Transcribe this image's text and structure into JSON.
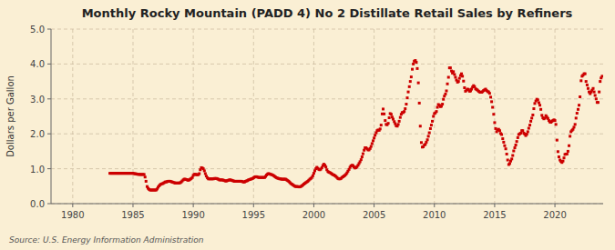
{
  "chart_data": {
    "type": "scatter",
    "title": "Monthly Rocky Mountain (PADD 4) No 2 Distillate Retail Sales by Refiners",
    "ylabel": "Dollars per Gallon",
    "source": "Source: U.S. Energy Information Administration",
    "color": "#cc0000",
    "marker": "square",
    "grid": true,
    "xlim": [
      1978.2,
      2024.0
    ],
    "xticks": [
      1980,
      1985,
      1990,
      1995,
      2000,
      2005,
      2010,
      2015,
      2020
    ],
    "ylim": [
      0.0,
      5.0
    ],
    "yticks": [
      {
        "value": 0.0,
        "label": "0.0"
      },
      {
        "value": 1.0,
        "label": "1.0"
      },
      {
        "value": 2.0,
        "label": "2.0"
      },
      {
        "value": 3.0,
        "label": "3.0"
      },
      {
        "value": 4.0,
        "label": "4.0"
      },
      {
        "value": 5.0,
        "label": "5.0"
      }
    ],
    "x": [
      1983.08,
      1983.17,
      1983.25,
      1983.33,
      1983.42,
      1983.5,
      1983.58,
      1983.67,
      1983.75,
      1983.83,
      1983.92,
      1984.0,
      1984.08,
      1984.17,
      1984.25,
      1984.33,
      1984.42,
      1984.5,
      1984.58,
      1984.67,
      1984.75,
      1984.83,
      1984.92,
      1985.0,
      1985.08,
      1985.17,
      1985.25,
      1985.33,
      1985.42,
      1985.5,
      1985.58,
      1985.67,
      1985.75,
      1985.83,
      1985.92,
      1986.0,
      1986.08,
      1986.17,
      1986.25,
      1986.33,
      1986.42,
      1986.5,
      1986.58,
      1986.67,
      1986.75,
      1986.83,
      1986.92,
      1987.0,
      1987.08,
      1987.17,
      1987.25,
      1987.33,
      1987.42,
      1987.5,
      1987.58,
      1987.67,
      1987.75,
      1987.83,
      1987.92,
      1988.0,
      1988.08,
      1988.17,
      1988.25,
      1988.33,
      1988.42,
      1988.5,
      1988.58,
      1988.67,
      1988.75,
      1988.83,
      1988.92,
      1989.0,
      1989.08,
      1989.17,
      1989.25,
      1989.33,
      1989.42,
      1989.5,
      1989.58,
      1989.67,
      1989.75,
      1989.83,
      1989.92,
      1990.0,
      1990.08,
      1990.17,
      1990.25,
      1990.33,
      1990.42,
      1990.5,
      1990.58,
      1990.67,
      1990.75,
      1990.83,
      1990.92,
      1991.0,
      1991.08,
      1991.17,
      1991.25,
      1991.33,
      1991.42,
      1991.5,
      1991.58,
      1991.67,
      1991.75,
      1991.83,
      1991.92,
      1992.0,
      1992.08,
      1992.17,
      1992.25,
      1992.33,
      1992.42,
      1992.5,
      1992.58,
      1992.67,
      1992.75,
      1992.83,
      1992.92,
      1993.0,
      1993.08,
      1993.17,
      1993.25,
      1993.33,
      1993.42,
      1993.5,
      1993.58,
      1993.67,
      1993.75,
      1993.83,
      1993.92,
      1994.0,
      1994.08,
      1994.17,
      1994.25,
      1994.33,
      1994.42,
      1994.5,
      1994.58,
      1994.67,
      1994.75,
      1994.83,
      1994.92,
      1995.0,
      1995.08,
      1995.17,
      1995.25,
      1995.33,
      1995.42,
      1995.5,
      1995.58,
      1995.67,
      1995.75,
      1995.83,
      1995.92,
      1996.0,
      1996.08,
      1996.17,
      1996.25,
      1996.33,
      1996.42,
      1996.5,
      1996.58,
      1996.67,
      1996.75,
      1996.83,
      1996.92,
      1997.0,
      1997.08,
      1997.17,
      1997.25,
      1997.33,
      1997.42,
      1997.5,
      1997.58,
      1997.67,
      1997.75,
      1997.83,
      1997.92,
      1998.0,
      1998.08,
      1998.17,
      1998.25,
      1998.33,
      1998.42,
      1998.5,
      1998.58,
      1998.67,
      1998.75,
      1998.83,
      1998.92,
      1999.0,
      1999.08,
      1999.17,
      1999.25,
      1999.33,
      1999.42,
      1999.5,
      1999.58,
      1999.67,
      1999.75,
      1999.83,
      1999.92,
      2000.0,
      2000.08,
      2000.17,
      2000.25,
      2000.33,
      2000.42,
      2000.5,
      2000.58,
      2000.67,
      2000.75,
      2000.83,
      2000.92,
      2001.0,
      2001.08,
      2001.17,
      2001.25,
      2001.33,
      2001.42,
      2001.5,
      2001.58,
      2001.67,
      2001.75,
      2001.83,
      2001.92,
      2002.0,
      2002.08,
      2002.17,
      2002.25,
      2002.33,
      2002.42,
      2002.5,
      2002.58,
      2002.67,
      2002.75,
      2002.83,
      2002.92,
      2003.0,
      2003.08,
      2003.17,
      2003.25,
      2003.33,
      2003.42,
      2003.5,
      2003.58,
      2003.67,
      2003.75,
      2003.83,
      2003.92,
      2004.0,
      2004.08,
      2004.17,
      2004.25,
      2004.33,
      2004.42,
      2004.5,
      2004.58,
      2004.67,
      2004.75,
      2004.83,
      2004.92,
      2005.0,
      2005.08,
      2005.17,
      2005.25,
      2005.33,
      2005.42,
      2005.5,
      2005.58,
      2005.67,
      2005.75,
      2005.83,
      2005.92,
      2006.0,
      2006.08,
      2006.17,
      2006.25,
      2006.33,
      2006.42,
      2006.5,
      2006.58,
      2006.67,
      2006.75,
      2006.83,
      2006.92,
      2007.0,
      2007.08,
      2007.17,
      2007.25,
      2007.33,
      2007.42,
      2007.5,
      2007.58,
      2007.67,
      2007.75,
      2007.83,
      2007.92,
      2008.0,
      2008.08,
      2008.17,
      2008.25,
      2008.33,
      2008.42,
      2008.5,
      2008.58,
      2008.67,
      2008.75,
      2008.83,
      2008.92,
      2009.0,
      2009.08,
      2009.17,
      2009.25,
      2009.33,
      2009.42,
      2009.5,
      2009.58,
      2009.67,
      2009.75,
      2009.83,
      2009.92,
      2010.0,
      2010.08,
      2010.17,
      2010.25,
      2010.33,
      2010.42,
      2010.5,
      2010.58,
      2010.67,
      2010.75,
      2010.83,
      2010.92,
      2011.0,
      2011.08,
      2011.17,
      2011.25,
      2011.33,
      2011.42,
      2011.5,
      2011.58,
      2011.67,
      2011.75,
      2011.83,
      2011.92,
      2012.0,
      2012.08,
      2012.17,
      2012.25,
      2012.33,
      2012.42,
      2012.5,
      2012.58,
      2012.67,
      2012.75,
      2012.83,
      2012.92,
      2013.0,
      2013.08,
      2013.17,
      2013.25,
      2013.33,
      2013.42,
      2013.5,
      2013.58,
      2013.67,
      2013.75,
      2013.83,
      2013.92,
      2014.0,
      2014.08,
      2014.17,
      2014.25,
      2014.33,
      2014.42,
      2014.5,
      2014.58,
      2014.67,
      2014.75,
      2014.83,
      2014.92,
      2015.0,
      2015.08,
      2015.17,
      2015.25,
      2015.33,
      2015.42,
      2015.5,
      2015.58,
      2015.67,
      2015.75,
      2015.83,
      2015.92,
      2016.0,
      2016.08,
      2016.17,
      2016.25,
      2016.33,
      2016.42,
      2016.5,
      2016.58,
      2016.67,
      2016.75,
      2016.83,
      2016.92,
      2017.0,
      2017.08,
      2017.17,
      2017.25,
      2017.33,
      2017.42,
      2017.5,
      2017.58,
      2017.67,
      2017.75,
      2017.83,
      2017.92,
      2018.0,
      2018.08,
      2018.17,
      2018.25,
      2018.33,
      2018.42,
      2018.5,
      2018.58,
      2018.67,
      2018.75,
      2018.83,
      2018.92,
      2019.0,
      2019.08,
      2019.17,
      2019.25,
      2019.33,
      2019.42,
      2019.5,
      2019.58,
      2019.67,
      2019.75,
      2019.83,
      2019.92,
      2020.0,
      2020.08,
      2020.17,
      2020.25,
      2020.33,
      2020.42,
      2020.5,
      2020.58,
      2020.67,
      2020.75,
      2020.83,
      2020.92,
      2021.0,
      2021.08,
      2021.17,
      2021.25,
      2021.33,
      2021.42,
      2021.5,
      2021.58,
      2021.67,
      2021.75,
      2021.83,
      2021.92,
      2022.0,
      2022.08,
      2022.17,
      2022.25,
      2022.33,
      2022.42,
      2022.5,
      2022.58,
      2022.67,
      2022.75,
      2022.83,
      2022.92,
      2023.0,
      2023.08,
      2023.17,
      2023.25,
      2023.33,
      2023.42,
      2023.5,
      2023.58,
      2023.67,
      2023.75,
      2023.83,
      2023.92
    ],
    "values": [
      0.869,
      0.869,
      0.869,
      0.869,
      0.869,
      0.869,
      0.869,
      0.869,
      0.869,
      0.869,
      0.869,
      0.869,
      0.869,
      0.869,
      0.869,
      0.869,
      0.869,
      0.869,
      0.869,
      0.869,
      0.869,
      0.869,
      0.869,
      0.869,
      0.862,
      0.855,
      0.855,
      0.844,
      0.84,
      0.84,
      0.836,
      0.836,
      0.836,
      0.836,
      0.836,
      0.762,
      0.64,
      0.49,
      0.44,
      0.41,
      0.39,
      0.39,
      0.39,
      0.39,
      0.39,
      0.39,
      0.39,
      0.42,
      0.47,
      0.51,
      0.54,
      0.56,
      0.57,
      0.58,
      0.6,
      0.62,
      0.62,
      0.63,
      0.64,
      0.64,
      0.64,
      0.63,
      0.62,
      0.61,
      0.6,
      0.59,
      0.59,
      0.59,
      0.59,
      0.59,
      0.6,
      0.62,
      0.65,
      0.68,
      0.7,
      0.7,
      0.69,
      0.68,
      0.67,
      0.68,
      0.7,
      0.72,
      0.75,
      0.81,
      0.84,
      0.84,
      0.83,
      0.83,
      0.83,
      0.86,
      0.97,
      1.03,
      1.02,
      1.0,
      0.94,
      0.86,
      0.79,
      0.74,
      0.71,
      0.71,
      0.71,
      0.71,
      0.71,
      0.71,
      0.72,
      0.72,
      0.72,
      0.71,
      0.7,
      0.68,
      0.68,
      0.68,
      0.68,
      0.67,
      0.66,
      0.65,
      0.65,
      0.66,
      0.67,
      0.68,
      0.68,
      0.67,
      0.66,
      0.65,
      0.64,
      0.64,
      0.64,
      0.64,
      0.64,
      0.64,
      0.64,
      0.64,
      0.63,
      0.62,
      0.62,
      0.64,
      0.65,
      0.66,
      0.68,
      0.69,
      0.7,
      0.71,
      0.72,
      0.74,
      0.76,
      0.77,
      0.77,
      0.76,
      0.75,
      0.75,
      0.75,
      0.75,
      0.75,
      0.75,
      0.75,
      0.78,
      0.82,
      0.85,
      0.86,
      0.85,
      0.84,
      0.83,
      0.82,
      0.8,
      0.78,
      0.76,
      0.74,
      0.73,
      0.72,
      0.71,
      0.71,
      0.7,
      0.7,
      0.7,
      0.7,
      0.7,
      0.68,
      0.66,
      0.64,
      0.61,
      0.58,
      0.56,
      0.54,
      0.52,
      0.5,
      0.49,
      0.49,
      0.49,
      0.48,
      0.48,
      0.49,
      0.51,
      0.53,
      0.56,
      0.58,
      0.6,
      0.62,
      0.64,
      0.67,
      0.7,
      0.72,
      0.75,
      0.8,
      0.87,
      0.94,
      1.0,
      1.04,
      1.01,
      0.98,
      0.97,
      0.99,
      1.03,
      1.09,
      1.13,
      1.1,
      1.05,
      0.97,
      0.92,
      0.9,
      0.89,
      0.87,
      0.85,
      0.83,
      0.82,
      0.8,
      0.78,
      0.75,
      0.72,
      0.71,
      0.71,
      0.72,
      0.75,
      0.77,
      0.79,
      0.81,
      0.84,
      0.88,
      0.93,
      0.98,
      1.04,
      1.08,
      1.1,
      1.09,
      1.05,
      1.02,
      1.03,
      1.06,
      1.1,
      1.15,
      1.2,
      1.26,
      1.34,
      1.43,
      1.53,
      1.6,
      1.6,
      1.57,
      1.54,
      1.54,
      1.58,
      1.64,
      1.72,
      1.8,
      1.88,
      1.96,
      2.03,
      2.09,
      2.11,
      2.1,
      2.14,
      2.25,
      2.57,
      2.71,
      2.57,
      2.38,
      2.27,
      2.26,
      2.3,
      2.46,
      2.58,
      2.56,
      2.48,
      2.42,
      2.35,
      2.29,
      2.23,
      2.22,
      2.27,
      2.36,
      2.47,
      2.56,
      2.61,
      2.61,
      2.64,
      2.72,
      2.85,
      3.03,
      3.2,
      3.35,
      3.5,
      3.63,
      3.85,
      4.0,
      4.08,
      4.1,
      4.05,
      3.87,
      3.46,
      2.88,
      2.22,
      1.75,
      1.62,
      1.63,
      1.68,
      1.7,
      1.76,
      1.83,
      1.93,
      2.03,
      2.15,
      2.25,
      2.36,
      2.5,
      2.58,
      2.6,
      2.64,
      2.76,
      2.84,
      2.82,
      2.78,
      2.79,
      2.85,
      2.99,
      3.08,
      3.14,
      3.23,
      3.43,
      3.62,
      3.89,
      3.89,
      3.8,
      3.74,
      3.78,
      3.7,
      3.62,
      3.54,
      3.48,
      3.5,
      3.59,
      3.67,
      3.72,
      3.65,
      3.51,
      3.32,
      3.22,
      3.25,
      3.28,
      3.27,
      3.22,
      3.23,
      3.28,
      3.34,
      3.38,
      3.35,
      3.29,
      3.27,
      3.25,
      3.22,
      3.2,
      3.19,
      3.19,
      3.21,
      3.24,
      3.26,
      3.28,
      3.24,
      3.21,
      3.2,
      3.16,
      3.05,
      2.92,
      2.76,
      2.56,
      2.32,
      2.15,
      2.06,
      2.11,
      2.13,
      2.09,
      2.01,
      1.98,
      1.86,
      1.76,
      1.66,
      1.57,
      1.42,
      1.25,
      1.12,
      1.15,
      1.22,
      1.28,
      1.38,
      1.51,
      1.6,
      1.68,
      1.78,
      1.89,
      1.98,
      2.0,
      2.02,
      2.09,
      2.09,
      2.02,
      1.99,
      1.95,
      1.99,
      2.06,
      2.16,
      2.25,
      2.36,
      2.45,
      2.54,
      2.72,
      2.87,
      2.94,
      2.99,
      2.97,
      2.89,
      2.82,
      2.7,
      2.53,
      2.46,
      2.43,
      2.45,
      2.52,
      2.48,
      2.44,
      2.38,
      2.34,
      2.33,
      2.36,
      2.38,
      2.4,
      2.38,
      2.27,
      1.82,
      1.49,
      1.34,
      1.25,
      1.21,
      1.18,
      1.22,
      1.31,
      1.41,
      1.42,
      1.42,
      1.5,
      1.66,
      1.93,
      2.06,
      2.1,
      2.13,
      2.19,
      2.27,
      2.45,
      2.59,
      2.7,
      2.82,
      3.06,
      3.52,
      3.65,
      3.68,
      3.72,
      3.72,
      3.5,
      3.4,
      3.3,
      3.2,
      3.15,
      3.2,
      3.25,
      3.3,
      3.2,
      3.1,
      3.0,
      2.9,
      2.9,
      3.2,
      3.5,
      3.6,
      3.65
    ]
  }
}
